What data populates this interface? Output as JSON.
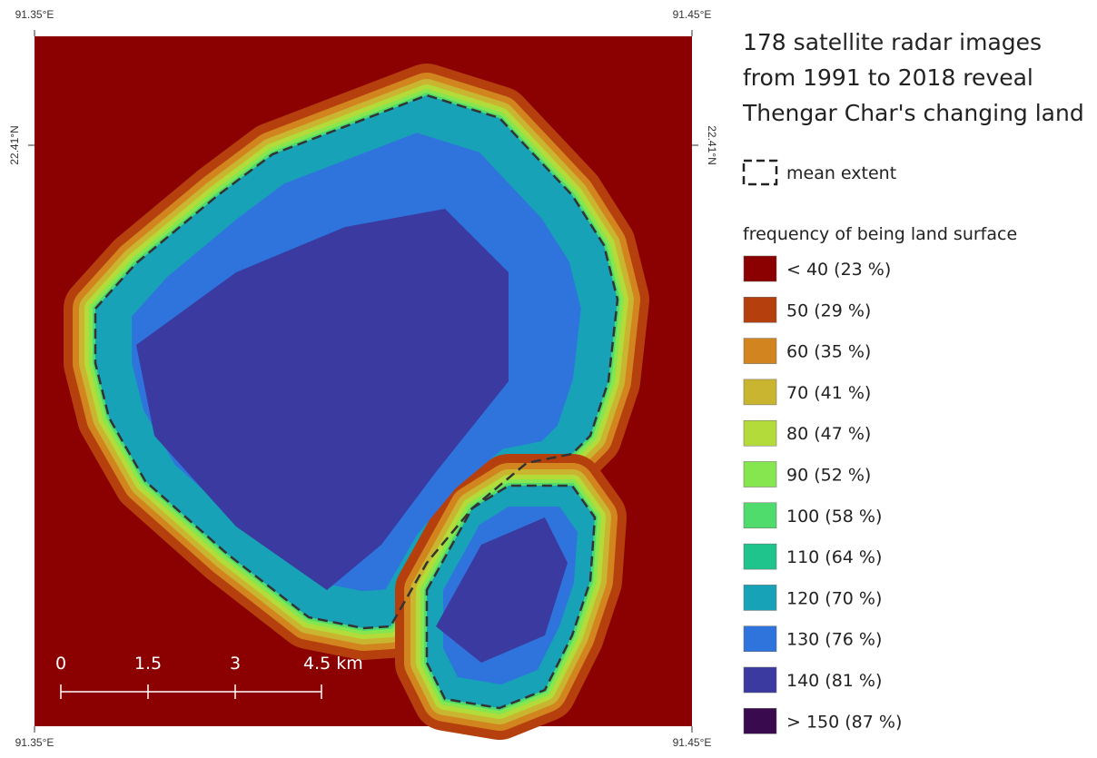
{
  "map": {
    "coords": {
      "top_left": "91.35°E",
      "top_right": "91.45°E",
      "left": "22.41°N",
      "right": "22.41°N",
      "bottom_left": "91.35°E",
      "bottom_right": "91.45°E"
    },
    "scale_bar": [
      "0",
      "1.5",
      "3",
      "4.5 km"
    ]
  },
  "legend": {
    "title": [
      "178 satellite radar images",
      "from 1991 to 2018 reveal",
      "Thengar Char's changing land"
    ],
    "outline_label": "mean extent",
    "frequency_title": "frequency of being land surface",
    "items": [
      {
        "label": "< 40 (23 %)",
        "color": "#8b0000"
      },
      {
        "label": "50 (29 %)",
        "color": "#b5400e"
      },
      {
        "label": "60 (35 %)",
        "color": "#d2851f"
      },
      {
        "label": "70 (41 %)",
        "color": "#c9b52f"
      },
      {
        "label": "80 (47 %)",
        "color": "#b3dc3a"
      },
      {
        "label": "90 (52 %)",
        "color": "#86e650"
      },
      {
        "label": "100 (58 %)",
        "color": "#4fdc6c"
      },
      {
        "label": "110 (64 %)",
        "color": "#1fc48d"
      },
      {
        "label": "120 (70 %)",
        "color": "#17a2b8"
      },
      {
        "label": "130 (76 %)",
        "color": "#2f74dc"
      },
      {
        "label": "140 (81 %)",
        "color": "#3a3aa0"
      },
      {
        "label": "> 150 (87 %)",
        "color": "#3a0a4e"
      }
    ]
  }
}
